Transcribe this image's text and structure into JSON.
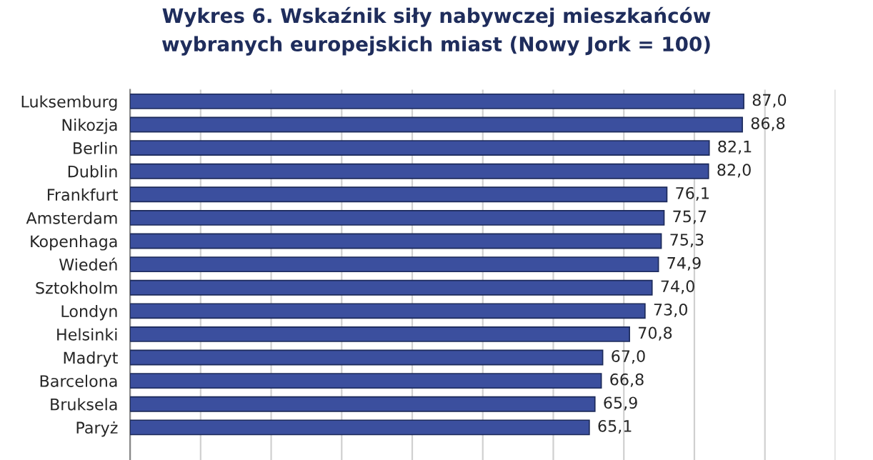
{
  "chart_data": {
    "type": "bar",
    "orientation": "horizontal",
    "title": "Wykres 6. Wskaźnik siły nabywczej mieszkańców\nwybranych europejskich miast (Nowy Jork = 100)",
    "categories": [
      "Luksemburg",
      "Nikozja",
      "Berlin",
      "Dublin",
      "Frankfurt",
      "Amsterdam",
      "Kopenhaga",
      "Wiedeń",
      "Sztokholm",
      "Londyn",
      "Helsinki",
      "Madryt",
      "Barcelona",
      "Bruksela",
      "Paryż"
    ],
    "values": [
      87.0,
      86.8,
      82.1,
      82.0,
      76.1,
      75.7,
      75.3,
      74.9,
      74.0,
      73.0,
      70.8,
      67.0,
      66.8,
      65.9,
      65.1
    ],
    "value_labels": [
      "87,0",
      "86,8",
      "82,1",
      "82,0",
      "76,1",
      "75,7",
      "75,3",
      "74,9",
      "74,0",
      "73,0",
      "70,8",
      "67,0",
      "66,8",
      "65,9",
      "65,1"
    ],
    "color": "#3b4f9e",
    "xlim": [
      0,
      100
    ],
    "xticks": [
      0,
      10,
      20,
      30,
      40,
      50,
      60,
      70,
      80,
      90,
      100
    ],
    "tick_labels": "y",
    "grid": "x"
  }
}
